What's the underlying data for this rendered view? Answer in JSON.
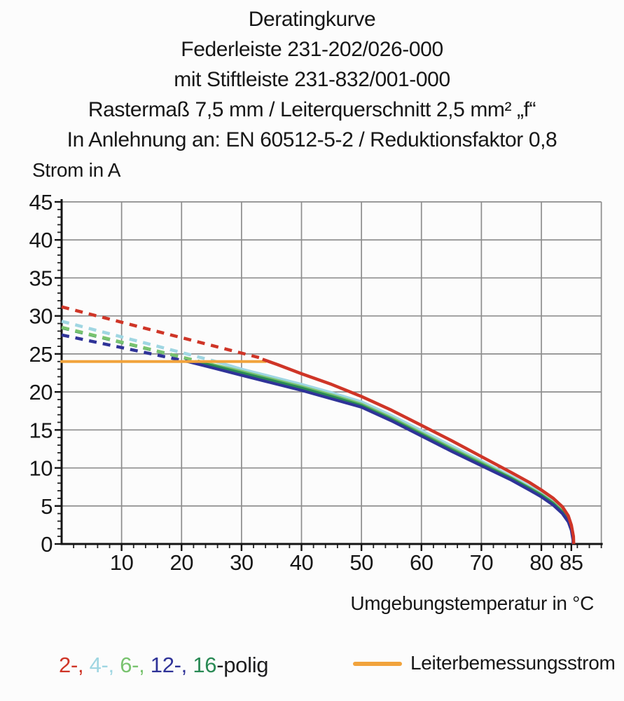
{
  "chart_data": {
    "type": "line",
    "title_lines": [
      "Deratingkurve",
      "Federleiste 231-202/026-000",
      "mit Stiftleiste 231-832/001-000",
      "Rastermaß 7,5 mm / Leiterquerschnitt 2,5 mm² „f“",
      "In Anlehnung an: EN 60512-5-2 / Reduktionsfaktor 0,8"
    ],
    "xlabel": "Umgebungstemperatur in °C",
    "ylabel": "Strom in A",
    "xlim": [
      0,
      90
    ],
    "ylim": [
      0,
      45
    ],
    "x_major_ticks": [
      10,
      20,
      30,
      40,
      50,
      60,
      70,
      80,
      85
    ],
    "x_gridline_step": 10,
    "x_minor_step": 2,
    "y_major_ticks": [
      0,
      5,
      10,
      15,
      20,
      25,
      30,
      35,
      40,
      45
    ],
    "y_gridline_step": 5,
    "y_minor_step": 1,
    "grid": true,
    "legend_position": "bottom",
    "colors": {
      "grid": "#8d8d8d",
      "axis": "#141414"
    },
    "rated_current_line": {
      "name": "Leiterbemessungsstrom",
      "color": "#f1a33c",
      "y": 24,
      "x_range": [
        0,
        34
      ]
    },
    "series": [
      {
        "name": "2-polig",
        "poles": 2,
        "color": "#cf3527",
        "style": "dashed-then-solid",
        "dashed": [
          [
            0,
            31.2
          ],
          [
            33,
            24.5
          ]
        ],
        "solid": [
          [
            33.5,
            24.3
          ],
          [
            36,
            23.6
          ],
          [
            40,
            22.4
          ],
          [
            45,
            21.0
          ],
          [
            50,
            19.4
          ],
          [
            55,
            17.6
          ],
          [
            60,
            15.6
          ],
          [
            65,
            13.6
          ],
          [
            70,
            11.5
          ],
          [
            75,
            9.4
          ],
          [
            78,
            8.1
          ],
          [
            80,
            7.1
          ],
          [
            82,
            6.0
          ],
          [
            83.5,
            4.9
          ],
          [
            84.5,
            3.7
          ],
          [
            85,
            2.5
          ],
          [
            85.35,
            1.0
          ],
          [
            85.4,
            0
          ]
        ]
      },
      {
        "name": "4-polig",
        "poles": 4,
        "color": "#9fd6e2",
        "style": "dashed-then-solid",
        "dashed": [
          [
            0,
            29.3
          ],
          [
            25.5,
            24.05
          ]
        ],
        "solid": [
          [
            25.5,
            24.05
          ],
          [
            30,
            23.0
          ],
          [
            35,
            22.0
          ],
          [
            40,
            21.0
          ],
          [
            45,
            19.9
          ],
          [
            50,
            18.7
          ],
          [
            55,
            16.9
          ],
          [
            60,
            14.9
          ],
          [
            65,
            12.9
          ],
          [
            70,
            10.9
          ],
          [
            75,
            8.9
          ],
          [
            78,
            7.6
          ],
          [
            80,
            6.7
          ],
          [
            82,
            5.6
          ],
          [
            83.5,
            4.5
          ],
          [
            84.5,
            3.3
          ],
          [
            85,
            2.2
          ],
          [
            85.3,
            0.8
          ],
          [
            85.35,
            0
          ]
        ]
      },
      {
        "name": "6-polig",
        "poles": 6,
        "color": "#79c36f",
        "style": "dashed-then-solid",
        "dashed": [
          [
            0,
            28.5
          ],
          [
            23,
            24.0
          ]
        ],
        "solid": [
          [
            23,
            24.0
          ],
          [
            30,
            22.7
          ],
          [
            35,
            21.7
          ],
          [
            40,
            20.7
          ],
          [
            45,
            19.6
          ],
          [
            50,
            18.4
          ],
          [
            55,
            16.6
          ],
          [
            60,
            14.6
          ],
          [
            65,
            12.6
          ],
          [
            70,
            10.7
          ],
          [
            75,
            8.7
          ],
          [
            78,
            7.4
          ],
          [
            80,
            6.5
          ],
          [
            82,
            5.4
          ],
          [
            83.5,
            4.3
          ],
          [
            84.5,
            3.2
          ],
          [
            85,
            2.1
          ],
          [
            85.3,
            0.7
          ],
          [
            85.32,
            0
          ]
        ]
      },
      {
        "name": "16-polig",
        "poles": 16,
        "color": "#2a8a55",
        "style": "dashed-then-solid",
        "dashed": [
          [
            0,
            28.45
          ],
          [
            22.9,
            24.0
          ]
        ],
        "solid": [
          [
            22.3,
            24.0
          ],
          [
            30,
            22.5
          ],
          [
            35,
            21.5
          ],
          [
            40,
            20.5
          ],
          [
            45,
            19.4
          ],
          [
            50,
            18.2
          ],
          [
            55,
            16.4
          ],
          [
            60,
            14.4
          ],
          [
            65,
            12.4
          ],
          [
            70,
            10.5
          ],
          [
            75,
            8.6
          ],
          [
            78,
            7.3
          ],
          [
            80,
            6.4
          ],
          [
            82,
            5.3
          ],
          [
            83.5,
            4.2
          ],
          [
            84.5,
            3.1
          ],
          [
            85,
            2.0
          ],
          [
            85.3,
            0.6
          ],
          [
            85.3,
            0
          ]
        ]
      },
      {
        "name": "12-polig",
        "poles": 12,
        "color": "#2f3398",
        "style": "dashed-then-solid",
        "dashed": [
          [
            0,
            27.5
          ],
          [
            21,
            24.0
          ]
        ],
        "solid": [
          [
            21,
            24.0
          ],
          [
            25,
            23.2
          ],
          [
            30,
            22.2
          ],
          [
            35,
            21.2
          ],
          [
            40,
            20.2
          ],
          [
            45,
            19.1
          ],
          [
            50,
            18.0
          ],
          [
            55,
            16.2
          ],
          [
            60,
            14.2
          ],
          [
            65,
            12.2
          ],
          [
            70,
            10.3
          ],
          [
            75,
            8.4
          ],
          [
            78,
            7.1
          ],
          [
            80,
            6.2
          ],
          [
            82,
            5.1
          ],
          [
            83.5,
            4.0
          ],
          [
            84.5,
            2.9
          ],
          [
            85,
            1.8
          ],
          [
            85.28,
            0.5
          ],
          [
            85.28,
            0
          ]
        ]
      }
    ]
  },
  "legend": {
    "poles_tokens": [
      {
        "text": "2-,",
        "color": "#cf3527"
      },
      {
        "text": " 4-,",
        "color": "#9fd6e2"
      },
      {
        "text": " 6-,",
        "color": "#79c36f"
      },
      {
        "text": " 12-,",
        "color": "#2f3398"
      },
      {
        "text": " 16",
        "color": "#2a8a55"
      },
      {
        "text": "-polig",
        "color": "#1d1d1f"
      }
    ]
  }
}
